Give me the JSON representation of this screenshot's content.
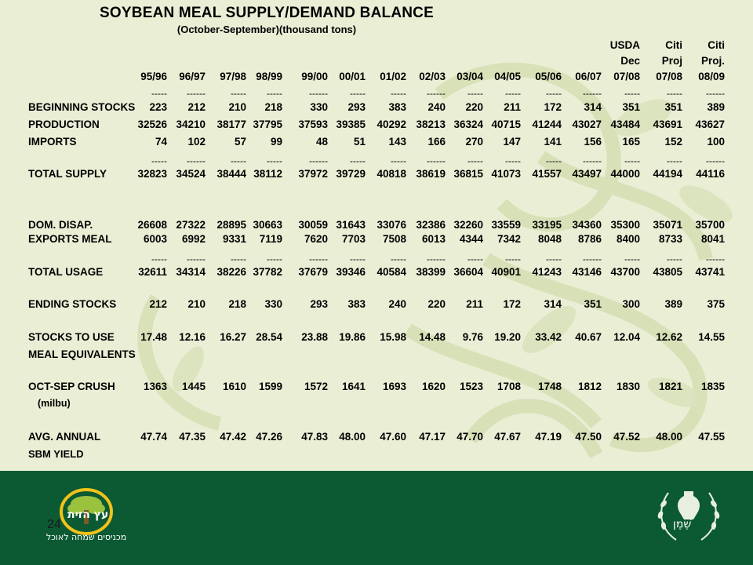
{
  "title": "SOYBEAN MEAL SUPPLY/DEMAND BALANCE",
  "subtitle": "(October-September)(thousand tons)",
  "header_top": [
    {
      "col": 12,
      "lines": [
        "USDA",
        "Dec"
      ]
    },
    {
      "col": 13,
      "lines": [
        "Citi",
        "Proj"
      ]
    },
    {
      "col": 14,
      "lines": [
        "Citi",
        "Proj."
      ]
    }
  ],
  "columns": [
    "95/96",
    "96/97",
    "97/98",
    "98/99",
    "99/00",
    "00/01",
    "01/02",
    "02/03",
    "03/04",
    "04/05",
    "05/06",
    "06/07",
    "07/08",
    "07/08",
    "08/09"
  ],
  "dashes": [
    "-----",
    "------",
    "-----",
    "-----",
    "------",
    "-----",
    "-----",
    "------",
    "-----",
    "-----",
    "-----",
    "------",
    "-----",
    "-----",
    "------"
  ],
  "rows": [
    {
      "label": "BEGINNING STOCKS",
      "values": [
        "223",
        "212",
        "210",
        "218",
        "330",
        "293",
        "383",
        "240",
        "220",
        "211",
        "172",
        "314",
        "351",
        "351",
        "389"
      ]
    },
    {
      "label": "PRODUCTION",
      "values": [
        "32526",
        "34210",
        "38177",
        "37795",
        "37593",
        "39385",
        "40292",
        "38213",
        "36324",
        "40715",
        "41244",
        "43027",
        "43484",
        "43691",
        "43627"
      ]
    },
    {
      "label": "IMPORTS",
      "values": [
        "74",
        "102",
        "57",
        "99",
        "48",
        "51",
        "143",
        "166",
        "270",
        "147",
        "141",
        "156",
        "165",
        "152",
        "100"
      ]
    },
    {
      "label": "TOTAL SUPPLY",
      "values": [
        "32823",
        "34524",
        "38444",
        "38112",
        "37972",
        "39729",
        "40818",
        "38619",
        "36815",
        "41073",
        "41557",
        "43497",
        "44000",
        "44194",
        "44116"
      ]
    },
    {
      "label": "DOM. DISAP.",
      "values": [
        "26608",
        "27322",
        "28895",
        "30663",
        "30059",
        "31643",
        "33076",
        "32386",
        "32260",
        "33559",
        "33195",
        "34360",
        "35300",
        "35071",
        "35700"
      ]
    },
    {
      "label": "EXPORTS MEAL",
      "values": [
        "6003",
        "6992",
        "9331",
        "7119",
        "7620",
        "7703",
        "7508",
        "6013",
        "4344",
        "7342",
        "8048",
        "8786",
        "8400",
        "8733",
        "8041"
      ]
    },
    {
      "label": "TOTAL USAGE",
      "values": [
        "32611",
        "34314",
        "38226",
        "37782",
        "37679",
        "39346",
        "40584",
        "38399",
        "36604",
        "40901",
        "41243",
        "43146",
        "43700",
        "43805",
        "43741"
      ]
    },
    {
      "label": "ENDING STOCKS",
      "values": [
        "212",
        "210",
        "218",
        "330",
        "293",
        "383",
        "240",
        "220",
        "211",
        "172",
        "314",
        "351",
        "300",
        "389",
        "375"
      ]
    },
    {
      "label": "STOCKS TO USE",
      "values": [
        "17.48",
        "12.16",
        "16.27",
        "28.54",
        "23.88",
        "19.86",
        "15.98",
        "14.48",
        "9.76",
        "19.20",
        "33.42",
        "40.67",
        "12.04",
        "12.62",
        "14.55"
      ]
    },
    {
      "label": "OCT-SEP CRUSH",
      "values": [
        "1363",
        "1445",
        "1610",
        "1599",
        "1572",
        "1641",
        "1693",
        "1620",
        "1523",
        "1708",
        "1748",
        "1812",
        "1830",
        "1821",
        "1835"
      ]
    },
    {
      "label": "AVG. ANNUAL",
      "values": [
        "47.74",
        "47.35",
        "47.42",
        "47.26",
        "47.83",
        "48.00",
        "47.60",
        "47.17",
        "47.70",
        "47.67",
        "47.19",
        "47.50",
        "47.52",
        "48.00",
        "47.55"
      ]
    }
  ],
  "extra_labels": {
    "meal_equivalents": "MEAL EQUIVALENTS",
    "milbu": "(milbu)",
    "sbm_yield": "SBM YIELD"
  },
  "page_number": "24",
  "logo_left": {
    "name": "עץ הזית",
    "tagline": "מכניסים שמחה לאוכל"
  },
  "logo_right": {
    "name": "שֶׁמֶן"
  },
  "colors": {
    "background": "#e9eed5",
    "footer": "#0c5a33",
    "watermark": "#d8e0b8"
  }
}
